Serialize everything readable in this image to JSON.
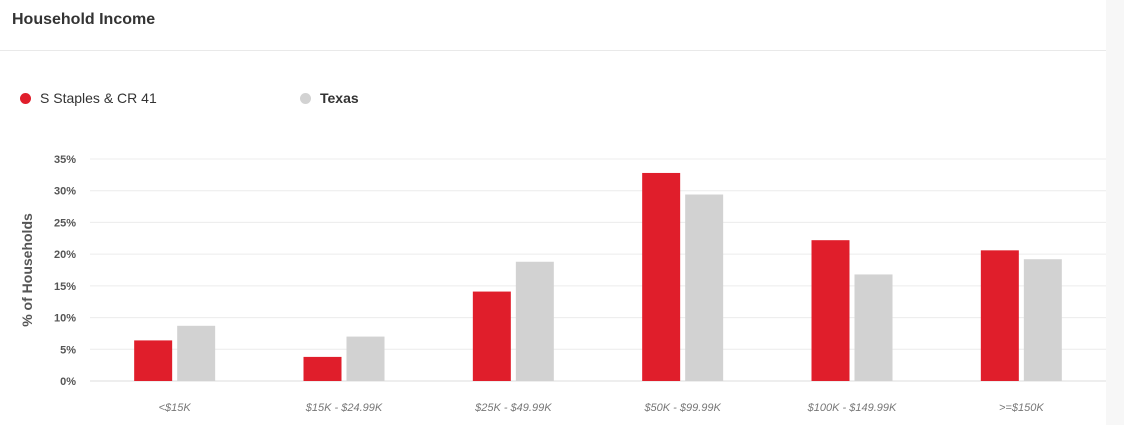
{
  "header": {
    "title": "Household Income"
  },
  "legend": {
    "items": [
      {
        "label": "S Staples & CR 41",
        "color": "#e01e2b"
      },
      {
        "label": "Texas",
        "color": "#d2d2d2"
      }
    ]
  },
  "chart_data": {
    "type": "bar",
    "title": "",
    "xlabel": "",
    "ylabel": "% of Households",
    "ylim": [
      0,
      35
    ],
    "yticks": [
      "0%",
      "5%",
      "10%",
      "15%",
      "20%",
      "25%",
      "30%",
      "35%"
    ],
    "categories": [
      "<$15K",
      "$15K - $24.99K",
      "$25K - $49.99K",
      "$50K - $99.99K",
      "$100K - $149.99K",
      ">=$150K"
    ],
    "series": [
      {
        "name": "S Staples & CR 41",
        "color": "#e01e2b",
        "values": [
          6.4,
          3.8,
          14.1,
          32.8,
          22.2,
          20.6
        ]
      },
      {
        "name": "Texas",
        "color": "#d2d2d2",
        "values": [
          8.7,
          7.0,
          18.8,
          29.4,
          16.8,
          19.2
        ]
      }
    ],
    "grid": true,
    "legend_position": "top-left"
  }
}
